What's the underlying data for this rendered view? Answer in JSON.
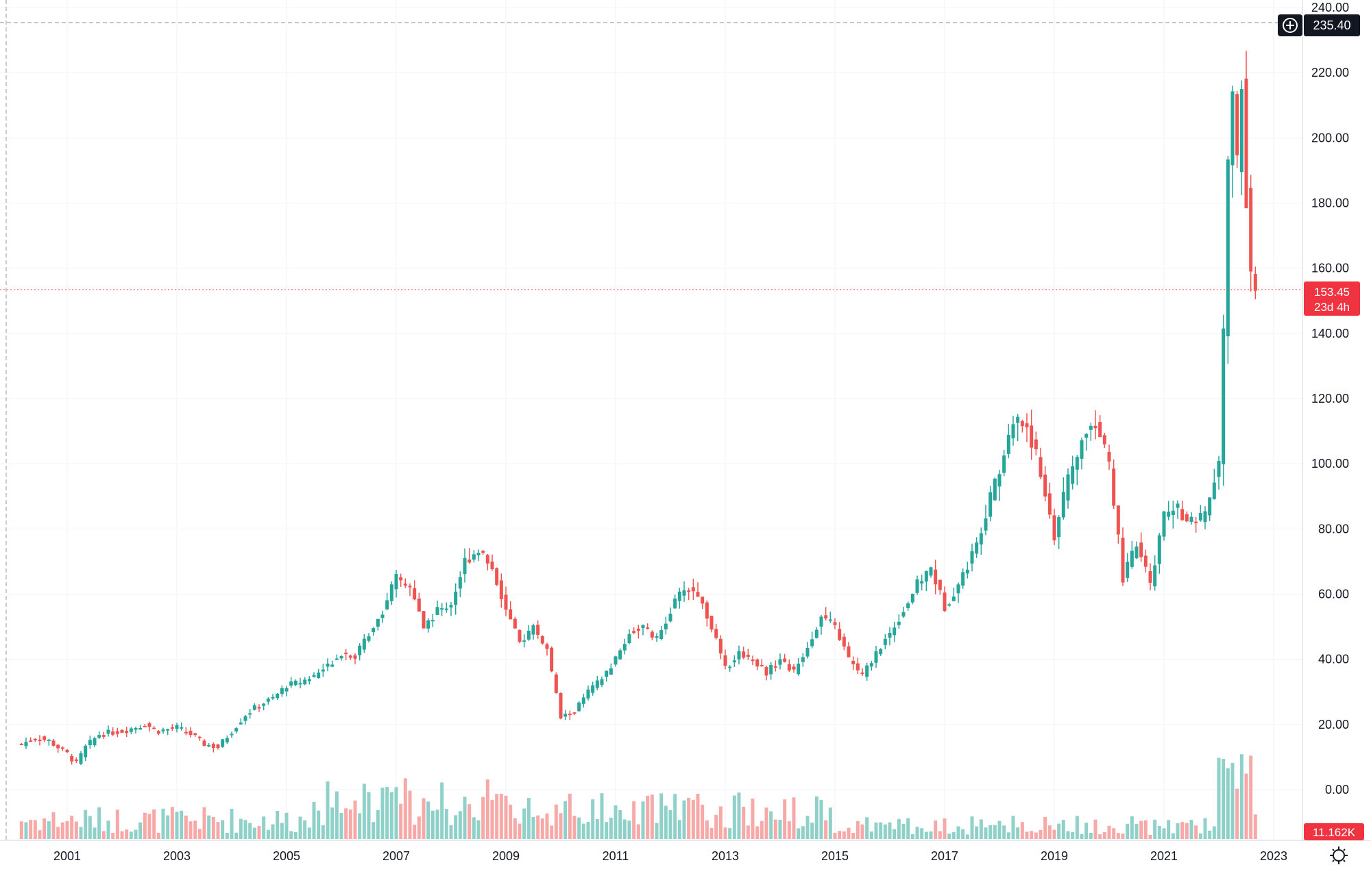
{
  "chart_data": {
    "type": "candlestick",
    "interval": "monthly",
    "y_axis": {
      "ticks": [
        "240.00",
        "220.00",
        "200.00",
        "180.00",
        "160.00",
        "140.00",
        "120.00",
        "100.00",
        "80.00",
        "60.00",
        "40.00",
        "20.00",
        "0.00"
      ],
      "range": [
        0,
        240
      ]
    },
    "x_axis": {
      "ticks": [
        "2001",
        "2003",
        "2005",
        "2007",
        "2009",
        "2011",
        "2013",
        "2015",
        "2017",
        "2019",
        "2021",
        "2023"
      ]
    },
    "crosshair_price": "235.40",
    "last_price": {
      "value": "153.45",
      "countdown": "23d 4h",
      "y": 153.45
    },
    "volume_label": "11.162K",
    "colors": {
      "up": "#26a69a",
      "down": "#ef5350",
      "up_volume": "#8fd1c9",
      "down_volume": "#f7a9a7"
    },
    "price_points": [
      [
        "2000-03",
        14
      ],
      [
        "2000-06",
        16
      ],
      [
        "2000-09",
        15
      ],
      [
        "2001-01",
        11
      ],
      [
        "2001-03",
        8
      ],
      [
        "2001-05",
        13
      ],
      [
        "2001-08",
        17
      ],
      [
        "2002-01",
        18
      ],
      [
        "2002-06",
        20
      ],
      [
        "2002-09",
        18
      ],
      [
        "2003-01",
        19
      ],
      [
        "2003-04",
        17
      ],
      [
        "2003-07",
        14
      ],
      [
        "2003-10",
        13
      ],
      [
        "2004-01",
        18
      ],
      [
        "2004-04",
        23
      ],
      [
        "2004-07",
        26
      ],
      [
        "2004-10",
        28
      ],
      [
        "2005-01",
        32
      ],
      [
        "2005-04",
        33
      ],
      [
        "2005-07",
        35
      ],
      [
        "2005-10",
        38
      ],
      [
        "2006-01",
        42
      ],
      [
        "2006-04",
        41
      ],
      [
        "2006-07",
        48
      ],
      [
        "2006-10",
        55
      ],
      [
        "2007-01",
        65
      ],
      [
        "2007-04",
        62
      ],
      [
        "2007-07",
        50
      ],
      [
        "2007-10",
        55
      ],
      [
        "2008-01",
        57
      ],
      [
        "2008-04",
        70
      ],
      [
        "2008-07",
        74
      ],
      [
        "2008-10",
        68
      ],
      [
        "2009-01",
        55
      ],
      [
        "2009-04",
        45
      ],
      [
        "2009-07",
        50
      ],
      [
        "2009-10",
        43
      ],
      [
        "2010-01",
        22
      ],
      [
        "2010-04",
        24
      ],
      [
        "2010-07",
        30
      ],
      [
        "2010-10",
        34
      ],
      [
        "2011-01",
        40
      ],
      [
        "2011-04",
        48
      ],
      [
        "2011-07",
        50
      ],
      [
        "2011-10",
        46
      ],
      [
        "2012-01",
        55
      ],
      [
        "2012-04",
        62
      ],
      [
        "2012-07",
        60
      ],
      [
        "2012-10",
        50
      ],
      [
        "2013-01",
        37
      ],
      [
        "2013-04",
        42
      ],
      [
        "2013-07",
        40
      ],
      [
        "2013-10",
        36
      ],
      [
        "2014-01",
        40
      ],
      [
        "2014-04",
        36
      ],
      [
        "2014-07",
        44
      ],
      [
        "2014-10",
        53
      ],
      [
        "2015-01",
        50
      ],
      [
        "2015-04",
        40
      ],
      [
        "2015-07",
        35
      ],
      [
        "2015-10",
        42
      ],
      [
        "2016-01",
        48
      ],
      [
        "2016-04",
        55
      ],
      [
        "2016-07",
        63
      ],
      [
        "2016-10",
        68
      ],
      [
        "2017-01",
        56
      ],
      [
        "2017-04",
        63
      ],
      [
        "2017-07",
        72
      ],
      [
        "2017-10",
        85
      ],
      [
        "2018-01",
        98
      ],
      [
        "2018-04",
        113
      ],
      [
        "2018-07",
        112
      ],
      [
        "2018-10",
        97
      ],
      [
        "2019-01",
        78
      ],
      [
        "2019-04",
        95
      ],
      [
        "2019-07",
        107
      ],
      [
        "2019-10",
        113
      ],
      [
        "2020-01",
        100
      ],
      [
        "2020-04",
        65
      ],
      [
        "2020-07",
        75
      ],
      [
        "2020-10",
        63
      ],
      [
        "2021-01",
        84
      ],
      [
        "2021-04",
        86
      ],
      [
        "2021-07",
        82
      ],
      [
        "2021-10",
        84
      ],
      [
        "2022-01",
        100
      ],
      [
        "2022-02",
        140
      ],
      [
        "2022-03",
        190
      ],
      [
        "2022-04",
        215
      ],
      [
        "2022-05",
        192
      ],
      [
        "2022-06",
        218
      ],
      [
        "2022-07",
        182
      ],
      [
        "2022-08",
        157
      ],
      [
        "2022-09",
        153
      ]
    ]
  }
}
